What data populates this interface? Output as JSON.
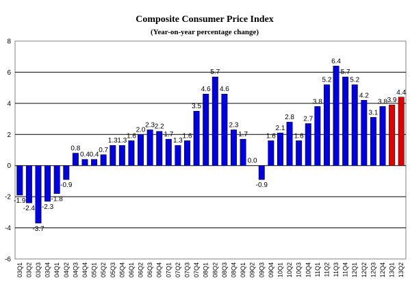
{
  "chart_data": {
    "type": "bar",
    "title": "Composite Consumer Price Index",
    "subtitle": "(Year-on-year percentage change)",
    "xlabel": "",
    "ylabel": "",
    "ylim": [
      -6,
      8
    ],
    "yticks": [
      -6,
      -4,
      -2,
      0,
      2,
      4,
      6,
      8
    ],
    "grid": true,
    "legend": "none",
    "colors": {
      "actual": "#0000e0",
      "highlight": "#e00000"
    },
    "categories": [
      "03Q1",
      "03Q2",
      "03Q3",
      "03Q4",
      "04Q1",
      "04Q2",
      "04Q3",
      "04Q4",
      "05Q1",
      "05Q2",
      "05Q3",
      "05Q4",
      "06Q1",
      "06Q2",
      "06Q3",
      "06Q4",
      "07Q1",
      "07Q2",
      "07Q3",
      "07Q4",
      "08Q1",
      "08Q2",
      "08Q3",
      "08Q4",
      "09Q1",
      "09Q2",
      "09Q3",
      "09Q4",
      "10Q1",
      "10Q2",
      "10Q3",
      "10Q4",
      "11Q1",
      "11Q2",
      "11Q3",
      "11Q4",
      "12Q1",
      "12Q2",
      "12Q3",
      "12Q4",
      "13Q1",
      "13Q2"
    ],
    "values": [
      -1.9,
      -2.4,
      -3.7,
      -2.3,
      -1.8,
      -0.9,
      0.8,
      0.4,
      0.4,
      0.7,
      1.3,
      1.3,
      1.6,
      2.0,
      2.3,
      2.2,
      1.7,
      1.3,
      1.6,
      3.5,
      4.6,
      5.7,
      4.6,
      2.3,
      1.7,
      0.0,
      -0.9,
      1.6,
      2.1,
      2.8,
      1.6,
      2.7,
      3.8,
      5.2,
      6.4,
      5.7,
      5.2,
      4.2,
      3.1,
      3.8,
      3.9,
      4.4
    ],
    "labels": [
      "-1.9",
      "-2.4",
      "-3.7",
      "-2.3",
      "-1.8",
      "-0.9",
      "0.8",
      "0.4",
      "0.4",
      "0.7",
      "1.3",
      "1.3",
      "1.6",
      "2.0",
      "2.3",
      "2.2",
      "1.7",
      "1.3",
      "1.6",
      "3.5",
      "4.6",
      "5.7",
      "4.6",
      "2.3",
      "1.7",
      "0.0",
      "-0.9",
      "1.6",
      "2.1",
      "2.8",
      "1.6",
      "2.7",
      "3.8",
      "5.2",
      "6.4",
      "5.7",
      "5.2",
      "4.2",
      "3.1",
      "3.8",
      "3.9",
      "4.4"
    ],
    "highlighted": [
      false,
      false,
      false,
      false,
      false,
      false,
      false,
      false,
      false,
      false,
      false,
      false,
      false,
      false,
      false,
      false,
      false,
      false,
      false,
      false,
      false,
      false,
      false,
      false,
      false,
      false,
      false,
      false,
      false,
      false,
      false,
      false,
      false,
      false,
      false,
      false,
      false,
      false,
      false,
      false,
      true,
      true
    ]
  }
}
